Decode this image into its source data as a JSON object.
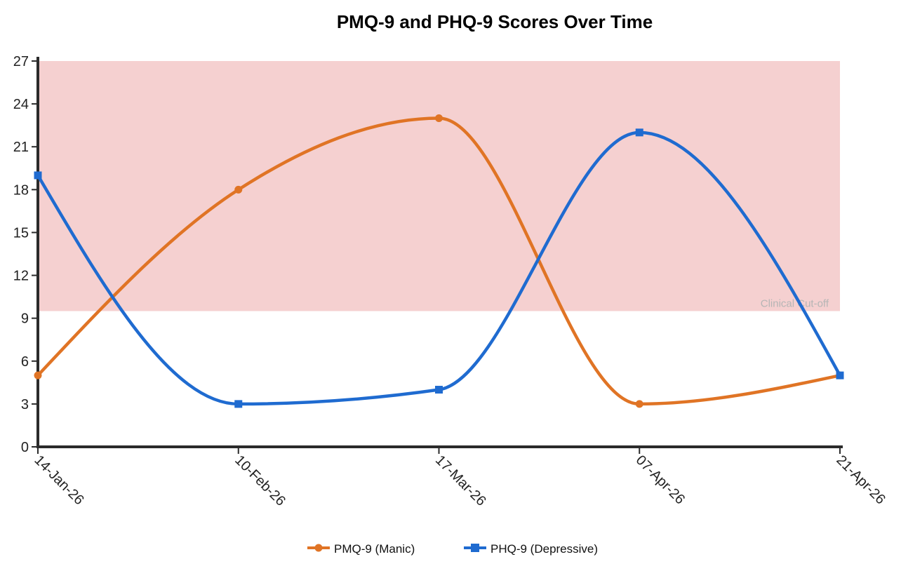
{
  "chart_data": {
    "type": "line",
    "title": "PMQ-9 and PHQ-9 Scores Over Time",
    "xlabel": "",
    "ylabel": "",
    "categories": [
      "14-Jan-26",
      "10-Feb-26",
      "17-Mar-26",
      "07-Apr-26",
      "21-Apr-26"
    ],
    "ylim": [
      0,
      27
    ],
    "yticks": [
      0,
      3,
      6,
      9,
      12,
      15,
      18,
      21,
      24,
      27
    ],
    "series": [
      {
        "name": "PMQ-9 (Manic)",
        "values": [
          5,
          18,
          23,
          3,
          5
        ],
        "color": "#e07425",
        "marker": "circle"
      },
      {
        "name": "PHQ-9 (Depressive)",
        "values": [
          19,
          3,
          4,
          22,
          5
        ],
        "color": "#1f6bd0",
        "marker": "square"
      }
    ],
    "band": {
      "label": "Clinical Cut-off",
      "from": 9.5,
      "to": 27,
      "color": "#f5d0d0"
    },
    "grid": false,
    "legend": "bottom",
    "curve": "smooth"
  }
}
